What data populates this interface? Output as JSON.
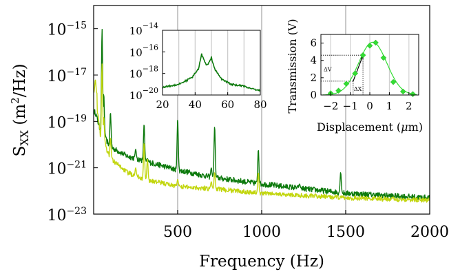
{
  "chart_data": [
    {
      "type": "line",
      "xlabel": "Frequency (Hz)",
      "ylabel_base": "S",
      "ylabel_sub": "XX",
      "ylabel_unit_pre": " (m",
      "ylabel_unit_sup": "2",
      "ylabel_unit_post": "/Hz)",
      "xlim": [
        0,
        2000
      ],
      "ylim_exp": [
        -23,
        -14
      ],
      "log_y": true,
      "grid": "x-only",
      "x_ticks": [
        "500",
        "1000",
        "1500",
        "2000"
      ],
      "y_ticks": [
        {
          "base": "10",
          "exp": "−15"
        },
        {
          "base": "10",
          "exp": "−17"
        },
        {
          "base": "10",
          "exp": "−19"
        },
        {
          "base": "10",
          "exp": "−21"
        },
        {
          "base": "10",
          "exp": "−23"
        }
      ],
      "series": [
        {
          "color": "#0d7a0d",
          "baseline_log": [
            [
              10,
              -18.6
            ],
            [
              40,
              -19.4
            ],
            [
              100,
              -20.1
            ],
            [
              200,
              -20.5
            ],
            [
              300,
              -20.7
            ],
            [
              400,
              -20.9
            ],
            [
              500,
              -21.1
            ],
            [
              700,
              -21.4
            ],
            [
              1000,
              -21.7
            ],
            [
              1500,
              -22.1
            ],
            [
              2000,
              -22.3
            ]
          ],
          "noise": 0.12,
          "peaks_log": [
            [
              50,
              -15.0
            ],
            [
              60,
              -17.8
            ],
            [
              100,
              -18.6
            ],
            [
              250,
              -20.2
            ],
            [
              300,
              -19.1
            ],
            [
              320,
              -20.6
            ],
            [
              500,
              -18.9
            ],
            [
              700,
              -21.0
            ],
            [
              720,
              -19.2
            ],
            [
              980,
              -20.2
            ],
            [
              1225,
              -21.7
            ],
            [
              1470,
              -21.2
            ]
          ]
        },
        {
          "color": "#c2d60f",
          "baseline_log": [
            [
              10,
              -17.8
            ],
            [
              40,
              -19.6
            ],
            [
              100,
              -20.6
            ],
            [
              200,
              -21.2
            ],
            [
              300,
              -21.5
            ],
            [
              500,
              -21.8
            ],
            [
              700,
              -21.9
            ],
            [
              1000,
              -22.1
            ],
            [
              1500,
              -22.3
            ],
            [
              2000,
              -22.4
            ]
          ],
          "noise": 0.1,
          "peaks_log": [
            [
              10,
              -17.2
            ],
            [
              50,
              -16.5
            ],
            [
              60,
              -18.8
            ],
            [
              100,
              -19.7
            ],
            [
              250,
              -21.0
            ],
            [
              300,
              -19.9
            ],
            [
              320,
              -20.6
            ],
            [
              500,
              -21.5
            ],
            [
              700,
              -21.6
            ],
            [
              720,
              -21.2
            ],
            [
              980,
              -21.2
            ]
          ]
        }
      ]
    },
    {
      "type": "line",
      "xlim": [
        20,
        80
      ],
      "ylim_exp": [
        -20,
        -14
      ],
      "log_y": true,
      "grid": "x-only",
      "x_ticks": [
        "20",
        "40",
        "60",
        "80"
      ],
      "y_ticks": [
        {
          "base": "10",
          "exp": "−14"
        },
        {
          "base": "10",
          "exp": "−16"
        },
        {
          "base": "10",
          "exp": "−18"
        },
        {
          "base": "10",
          "exp": "−20"
        }
      ],
      "series": [
        {
          "color": "#0d7a0d",
          "baseline_log": [
            [
              20,
              -19.3
            ],
            [
              30,
              -19.0
            ],
            [
              38,
              -18.4
            ],
            [
              42,
              -17.6
            ],
            [
              44,
              -16.2
            ],
            [
              45,
              -16.6
            ],
            [
              47,
              -17.3
            ],
            [
              49,
              -16.9
            ],
            [
              50,
              -16.5
            ],
            [
              52,
              -17.6
            ],
            [
              56,
              -18.5
            ],
            [
              62,
              -19.0
            ],
            [
              70,
              -19.2
            ],
            [
              80,
              -19.6
            ]
          ],
          "noise": 0.08
        }
      ]
    },
    {
      "type": "scatter",
      "xlabel_pre": "Displacement (",
      "xlabel_mu": "μ",
      "xlabel_post": "m)",
      "ylabel": "Transmission (V)",
      "xlim": [
        -2.5,
        2.5
      ],
      "ylim": [
        0,
        7
      ],
      "grid": "x-only",
      "x_ticks": [
        "−2",
        "−1",
        "0",
        "1",
        "2"
      ],
      "y_ticks": [
        "0",
        "2",
        "4",
        "6"
      ],
      "points": [
        [
          -2.0,
          0.2
        ],
        [
          -1.6,
          0.5
        ],
        [
          -1.2,
          1.3
        ],
        [
          -0.75,
          2.5
        ],
        [
          -0.35,
          4.6
        ],
        [
          0.0,
          5.7
        ],
        [
          0.3,
          6.05
        ],
        [
          0.7,
          4.3
        ],
        [
          1.2,
          1.5
        ],
        [
          1.7,
          0.4
        ],
        [
          2.2,
          0.1
        ]
      ],
      "fit_center": 0.15,
      "fit_sigma": 0.72,
      "fit_amp": 6.1,
      "color": "#33dd33",
      "annotations": {
        "dv": "ΔV",
        "dx": "ΔX"
      }
    }
  ]
}
